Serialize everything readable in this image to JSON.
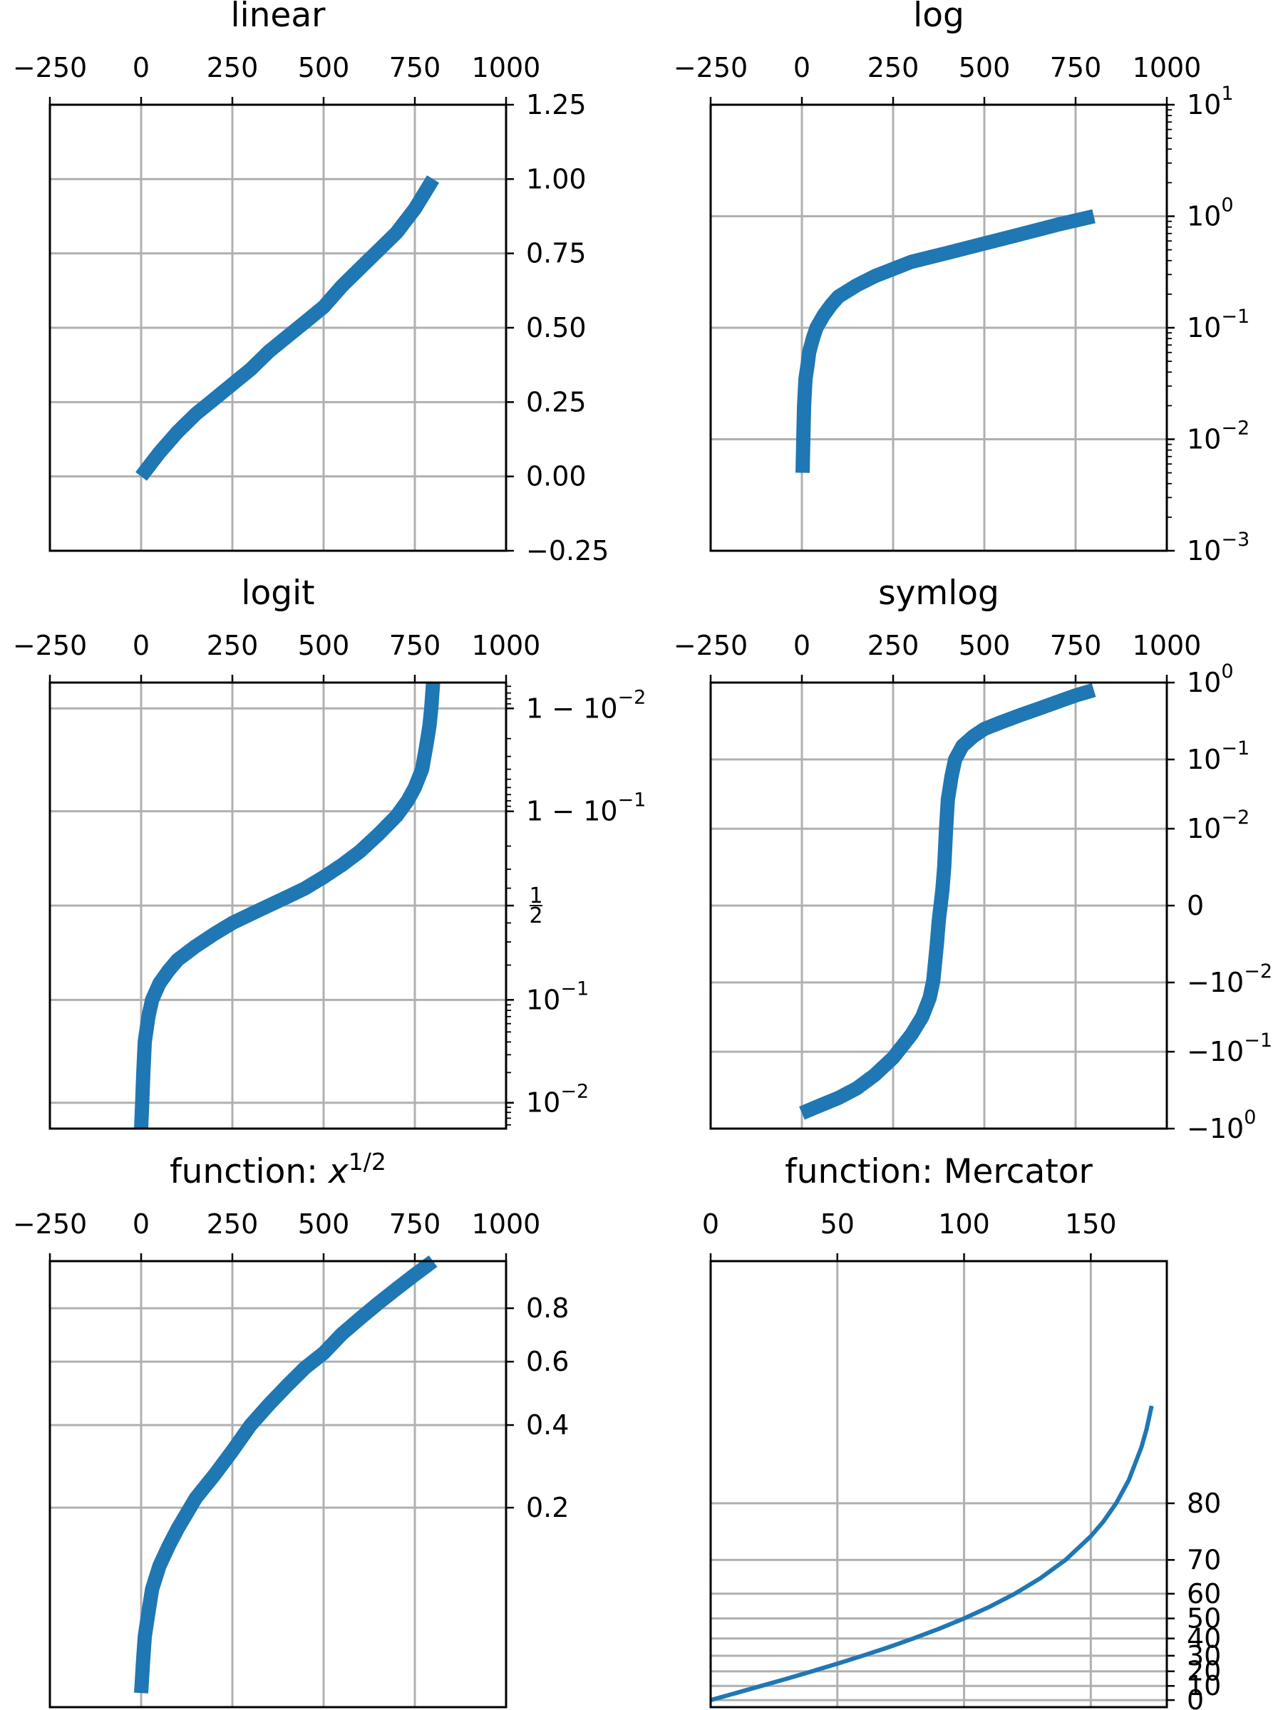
{
  "style": {
    "line_color": "#1f77b4",
    "grid_color": "#b0b0b0"
  },
  "chart_data": [
    {
      "type": "line",
      "title": "linear",
      "yscale": "linear",
      "grid": true,
      "xlim": [
        -250,
        1000
      ],
      "ylim": [
        -0.25,
        1.25
      ],
      "x_ticks": [
        -250,
        0,
        250,
        500,
        750,
        1000
      ],
      "x_tick_labels": [
        "−250",
        "0",
        "250",
        "500",
        "750",
        "1000"
      ],
      "x_tick_position": "top",
      "y_tick_position": "right",
      "y_ticks": [
        -0.25,
        0,
        0.25,
        0.5,
        0.75,
        1,
        1.25
      ],
      "y_tick_labels": [
        "−0.25",
        "0.00",
        "0.25",
        "0.50",
        "0.75",
        "1.00",
        "1.25"
      ],
      "series": [
        {
          "x": [
            0,
            25,
            50,
            100,
            150,
            200,
            250,
            300,
            350,
            400,
            450,
            500,
            550,
            600,
            650,
            700,
            750,
            800
          ],
          "y": [
            0,
            0.04,
            0.08,
            0.15,
            0.21,
            0.26,
            0.31,
            0.36,
            0.42,
            0.47,
            0.52,
            0.57,
            0.64,
            0.7,
            0.76,
            0.82,
            0.9,
            1.0
          ]
        }
      ]
    },
    {
      "type": "line",
      "title": "log",
      "yscale": "log",
      "grid": true,
      "xlim": [
        -250,
        1000
      ],
      "ylim": [
        0.001,
        10
      ],
      "x_ticks": [
        -250,
        0,
        250,
        500,
        750,
        1000
      ],
      "x_tick_labels": [
        "−250",
        "0",
        "250",
        "500",
        "750",
        "1000"
      ],
      "x_tick_position": "top",
      "y_tick_position": "right",
      "y_ticks": [
        0.001,
        0.01,
        0.1,
        1,
        10
      ],
      "y_tick_labels": [
        {
          "base": "10",
          "exp": "−3"
        },
        {
          "base": "10",
          "exp": "−2"
        },
        {
          "base": "10",
          "exp": "−1"
        },
        {
          "base": "10",
          "exp": "0"
        },
        {
          "base": "10",
          "exp": "1"
        }
      ],
      "series": [
        {
          "x": [
            2,
            4,
            6,
            10,
            15,
            20,
            30,
            40,
            60,
            80,
            100,
            150,
            200,
            300,
            400,
            500,
            600,
            700,
            800
          ],
          "y": [
            0.005,
            0.01,
            0.02,
            0.035,
            0.045,
            0.06,
            0.08,
            0.1,
            0.13,
            0.16,
            0.19,
            0.24,
            0.29,
            0.39,
            0.47,
            0.57,
            0.69,
            0.84,
            1.0
          ]
        }
      ]
    },
    {
      "type": "line",
      "title": "logit",
      "yscale": "logit",
      "grid": true,
      "xlim": [
        -250,
        1000
      ],
      "ylim": [
        0.0055,
        0.9945
      ],
      "x_ticks": [
        -250,
        0,
        250,
        500,
        750,
        1000
      ],
      "x_tick_labels": [
        "−250",
        "0",
        "250",
        "500",
        "750",
        "1000"
      ],
      "x_tick_position": "top",
      "y_tick_position": "right",
      "y_ticks": [
        0.01,
        0.1,
        0.5,
        0.9,
        0.99
      ],
      "y_tick_labels": [
        {
          "base": "10",
          "exp": "−2"
        },
        {
          "base": "10",
          "exp": "−1"
        },
        {
          "num": "1",
          "den": "2"
        },
        {
          "prefix": "1 − ",
          "base": "10",
          "exp": "−1"
        },
        {
          "prefix": "1 − ",
          "base": "10",
          "exp": "−2"
        }
      ],
      "series": [
        {
          "x": [
            0,
            3,
            6,
            10,
            20,
            30,
            50,
            75,
            100,
            150,
            200,
            250,
            300,
            350,
            400,
            450,
            500,
            550,
            600,
            650,
            700,
            730,
            750,
            770,
            780,
            790,
            795,
            800
          ],
          "y": [
            0.0055,
            0.01,
            0.02,
            0.04,
            0.07,
            0.1,
            0.14,
            0.18,
            0.22,
            0.28,
            0.34,
            0.4,
            0.45,
            0.5,
            0.55,
            0.6,
            0.66,
            0.72,
            0.78,
            0.84,
            0.89,
            0.92,
            0.94,
            0.96,
            0.975,
            0.985,
            0.99,
            0.9945
          ]
        }
      ]
    },
    {
      "type": "line",
      "title": "symlog",
      "yscale": "symlog",
      "grid": true,
      "xlim": [
        -250,
        1000
      ],
      "ylim": [
        -1,
        1
      ],
      "x_ticks": [
        -250,
        0,
        250,
        500,
        750,
        1000
      ],
      "x_tick_labels": [
        "−250",
        "0",
        "250",
        "500",
        "750",
        "1000"
      ],
      "x_tick_position": "top",
      "y_tick_position": "right",
      "y_ticks": [
        -1,
        -0.1,
        -0.01,
        0,
        0.01,
        0.1,
        1
      ],
      "y_tick_labels": [
        {
          "prefix": "−",
          "base": "10",
          "exp": "0"
        },
        {
          "prefix": "−",
          "base": "10",
          "exp": "−1"
        },
        {
          "prefix": "−",
          "base": "10",
          "exp": "−2"
        },
        {
          "text": "0"
        },
        {
          "base": "10",
          "exp": "−2"
        },
        {
          "base": "10",
          "exp": "−1"
        },
        {
          "base": "10",
          "exp": "0"
        }
      ],
      "series": [
        {
          "x": [
            0,
            50,
            100,
            150,
            200,
            250,
            300,
            330,
            350,
            360,
            370,
            375,
            380,
            385,
            390,
            395,
            400,
            410,
            420,
            440,
            470,
            500,
            550,
            600,
            650,
            700,
            750,
            800
          ],
          "y": [
            -0.63,
            -0.5,
            -0.4,
            -0.3,
            -0.2,
            -0.12,
            -0.06,
            -0.035,
            -0.02,
            -0.012,
            -0.005,
            -0.002,
            0,
            0.002,
            0.005,
            0.012,
            0.03,
            0.06,
            0.1,
            0.15,
            0.2,
            0.25,
            0.31,
            0.38,
            0.46,
            0.56,
            0.68,
            0.8
          ]
        }
      ]
    },
    {
      "type": "line",
      "title": "function: ",
      "title_math": {
        "base": "x",
        "exp": "1/2"
      },
      "yscale": "sqrt",
      "grid": true,
      "xlim": [
        -250,
        1000
      ],
      "ylim": [
        0,
        1
      ],
      "x_ticks": [
        -250,
        0,
        250,
        500,
        750,
        1000
      ],
      "x_tick_labels": [
        "−250",
        "0",
        "250",
        "500",
        "750",
        "1000"
      ],
      "x_tick_position": "top",
      "y_tick_position": "right",
      "y_ticks": [
        0.2,
        0.4,
        0.6,
        0.8
      ],
      "y_tick_labels": [
        "0.2",
        "0.4",
        "0.6",
        "0.8"
      ],
      "series": [
        {
          "x": [
            0,
            5,
            10,
            20,
            30,
            50,
            75,
            100,
            150,
            200,
            250,
            300,
            350,
            400,
            450,
            500,
            550,
            600,
            650,
            700,
            750,
            800
          ],
          "y": [
            0.001,
            0.01,
            0.025,
            0.045,
            0.07,
            0.1,
            0.13,
            0.16,
            0.22,
            0.27,
            0.33,
            0.4,
            0.46,
            0.52,
            0.58,
            0.63,
            0.7,
            0.76,
            0.82,
            0.88,
            0.94,
            1.0
          ]
        }
      ]
    },
    {
      "type": "line",
      "title": "function: Mercator",
      "yscale": "mercator",
      "grid": true,
      "line_width": "thin",
      "xlim": [
        0,
        180
      ],
      "ylim": [
        -5,
        89.5
      ],
      "x_ticks": [
        0,
        50,
        100,
        150
      ],
      "x_tick_labels": [
        "0",
        "50",
        "100",
        "150"
      ],
      "x_tick_position": "top",
      "y_tick_position": "right",
      "y_ticks": [
        0,
        10,
        20,
        30,
        40,
        50,
        60,
        70,
        80
      ],
      "y_tick_labels": [
        "0",
        "10",
        "20",
        "30",
        "40",
        "50",
        "60",
        "70",
        "80"
      ],
      "series": [
        {
          "x": [
            0,
            10,
            20,
            30,
            40,
            50,
            60,
            70,
            80,
            90,
            100,
            110,
            120,
            130,
            140,
            150,
            155,
            160,
            165,
            170,
            172,
            174
          ],
          "y": [
            0,
            5,
            10,
            15,
            20,
            25,
            30,
            35,
            40,
            45,
            50,
            55,
            60,
            65,
            70,
            75,
            77.5,
            80,
            82.5,
            85,
            86,
            87
          ]
        }
      ]
    }
  ]
}
